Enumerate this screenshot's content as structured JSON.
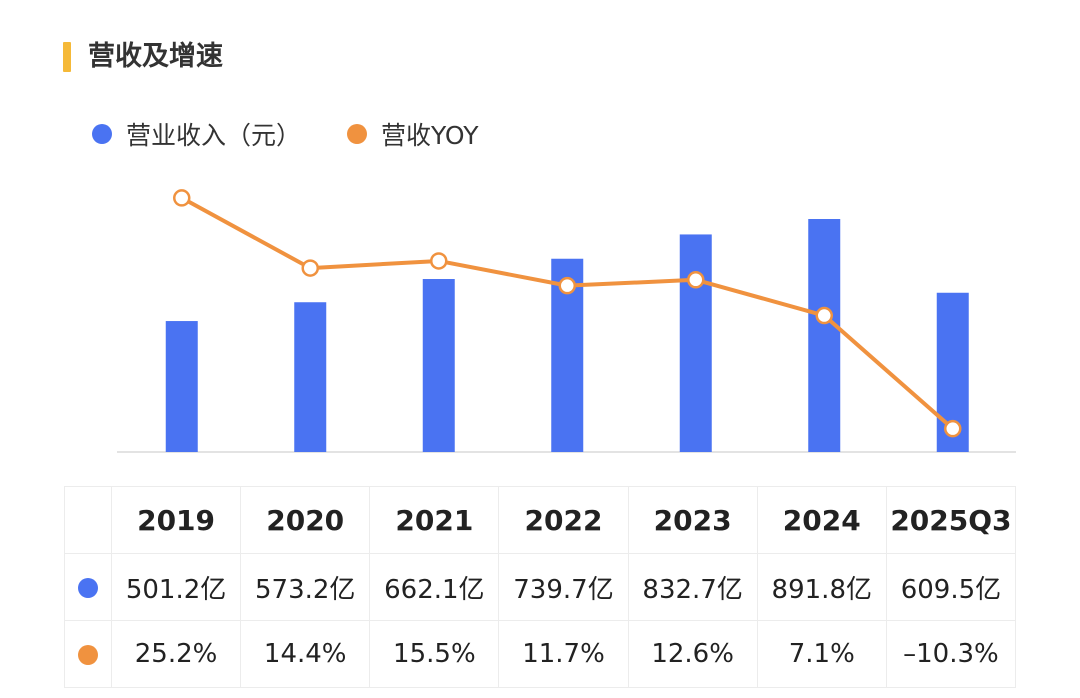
{
  "title": "营收及增速",
  "colors": {
    "accent": "#f5b938",
    "bar": "#4a73f2",
    "line": "#f0923f"
  },
  "legend": {
    "bar_label": "营业收入（元）",
    "line_label": "营收YOY"
  },
  "chart_data": {
    "type": "bar",
    "categories": [
      "2019",
      "2020",
      "2021",
      "2022",
      "2023",
      "2024",
      "2025Q3"
    ],
    "series": [
      {
        "name": "营业收入（元）",
        "type": "bar",
        "unit": "亿",
        "values": [
          501.2,
          573.2,
          662.1,
          739.7,
          832.7,
          891.8,
          609.5
        ]
      },
      {
        "name": "营收YOY",
        "type": "line",
        "unit": "%",
        "values": [
          25.2,
          14.4,
          15.5,
          11.7,
          12.6,
          7.1,
          -10.3
        ]
      }
    ],
    "xlabel": "",
    "ylabel": "",
    "grid": false,
    "legend_position": "top-left"
  },
  "table": {
    "headers": [
      "2019",
      "2020",
      "2021",
      "2022",
      "2023",
      "2024",
      "2025Q3"
    ],
    "revenue_row": [
      "501.2亿",
      "573.2亿",
      "662.1亿",
      "739.7亿",
      "832.7亿",
      "891.8亿",
      "609.5亿"
    ],
    "yoy_row": [
      "25.2%",
      "14.4%",
      "15.5%",
      "11.7%",
      "12.6%",
      "7.1%",
      "–10.3%"
    ]
  }
}
